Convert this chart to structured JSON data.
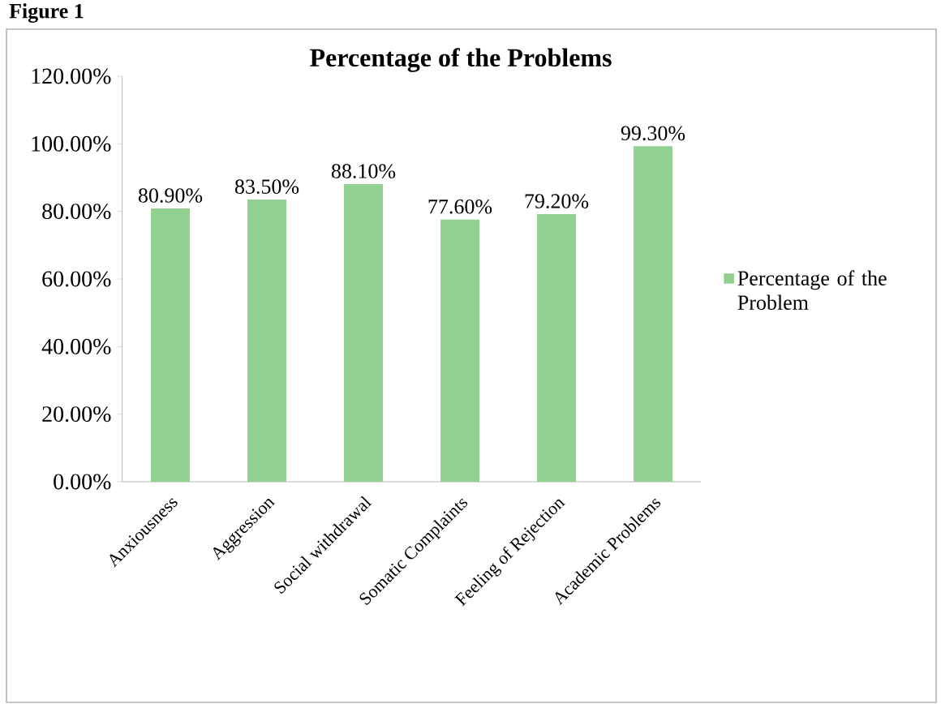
{
  "chart_data": {
    "type": "bar",
    "title": "Percentage of the Problems",
    "annotations": [
      "Figure 1"
    ],
    "categories": [
      "Anxiousness",
      "Aggression",
      "Social withdrawal",
      "Somatic Complaints",
      "Feeling of Rejection",
      "Academic Problems"
    ],
    "series": [
      {
        "name": "Percentage of the Problem",
        "color": "#92d08f",
        "values": [
          80.9,
          83.5,
          88.1,
          77.6,
          79.2,
          99.3
        ],
        "value_labels": [
          "80.90%",
          "83.50%",
          "88.10%",
          "77.60%",
          "79.20%",
          "99.30%"
        ]
      }
    ],
    "ylim": [
      0,
      120
    ],
    "yticks": [
      {
        "value": 0,
        "label": "0.00%"
      },
      {
        "value": 20,
        "label": "20.00%"
      },
      {
        "value": 40,
        "label": "40.00%"
      },
      {
        "value": 60,
        "label": "60.00%"
      },
      {
        "value": 80,
        "label": "80.00%"
      },
      {
        "value": 100,
        "label": "100.00%"
      },
      {
        "value": 120,
        "label": "120.00%"
      }
    ],
    "legend": "right"
  }
}
